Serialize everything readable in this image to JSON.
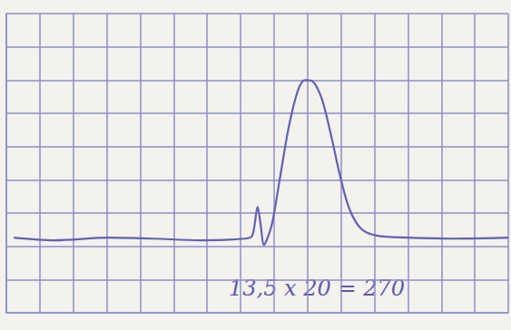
{
  "chart_data": {
    "type": "line",
    "x": [
      0.22,
      1.44,
      3.06,
      4.42,
      5.78,
      7.13,
      7.35,
      7.51,
      7.59,
      7.7,
      7.81,
      7.95,
      8.16,
      8.44,
      8.71,
      8.92,
      9.17,
      9.44,
      9.71,
      9.98,
      10.25,
      10.6,
      11.07,
      12.02,
      13.37,
      15.0
    ],
    "values": [
      2.26,
      2.18,
      2.26,
      2.23,
      2.18,
      2.23,
      2.32,
      3.19,
      2.72,
      2.04,
      2.26,
      2.72,
      3.95,
      5.59,
      6.68,
      7.0,
      6.95,
      6.4,
      5.31,
      4.09,
      3.13,
      2.53,
      2.32,
      2.26,
      2.23,
      2.26
    ],
    "color": "#6460b4",
    "xlim": [
      0,
      15
    ],
    "xticks": [
      0,
      1,
      2,
      3,
      4,
      5,
      6,
      7,
      8,
      9,
      10,
      11,
      12,
      13,
      14,
      15
    ],
    "ylim": [
      0,
      9
    ],
    "yticks": [
      0,
      1,
      2,
      3,
      4,
      5,
      6,
      7,
      8,
      9
    ],
    "grid": true,
    "tick_labels": false,
    "annotations": [
      "13,5 x 20 = 270"
    ]
  }
}
